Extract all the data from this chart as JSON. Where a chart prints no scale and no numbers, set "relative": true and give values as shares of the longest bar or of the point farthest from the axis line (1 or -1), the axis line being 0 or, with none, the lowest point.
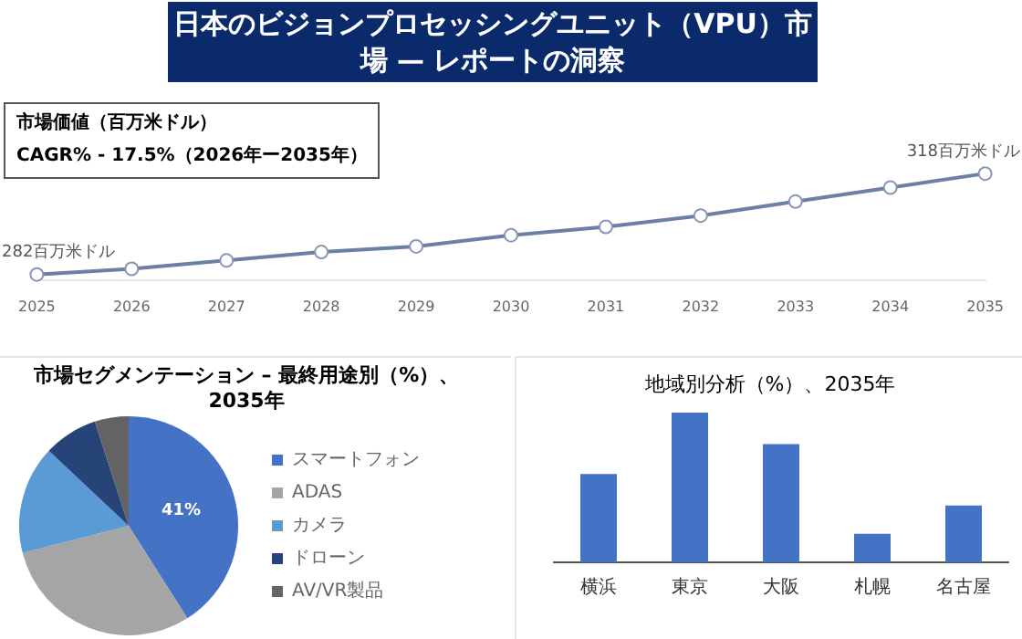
{
  "chart_data": [
    {
      "type": "line",
      "title": "日本のビジョンプロセッシングユニット（VPU）市場 — レポートの洞察",
      "subtitle": "市場価値（百万米ドル）",
      "annotations": [
        "CAGR% - 17.5%（2026年ー2035年）"
      ],
      "categories": [
        "2025",
        "2026",
        "2027",
        "2028",
        "2029",
        "2030",
        "2031",
        "2032",
        "2033",
        "2034",
        "2035"
      ],
      "series": [
        {
          "color": "#6b7fa8",
          "values": [
            282,
            284,
            287,
            290,
            292,
            296,
            299,
            303,
            308,
            313,
            318
          ],
          "value_labels": [
            "282百万米ドル",
            null,
            null,
            null,
            null,
            null,
            null,
            null,
            null,
            null,
            "318百万米ドル"
          ]
        }
      ],
      "tick_labels": "x",
      "marker": "circle",
      "grid": false,
      "legend": false
    },
    {
      "type": "pie",
      "title": "市場セグメンテーション – 最終用途別（%）、2035年",
      "categories": [
        "スマートフォン",
        "ADAS",
        "カメラ",
        "ドローン",
        "AV/VR製品"
      ],
      "values": [
        41,
        30,
        16,
        8,
        5
      ],
      "colors": [
        "#4472c4",
        "#a5a5a5",
        "#5b9bd5",
        "#264478",
        "#636363"
      ],
      "value_labels": [
        "41%",
        null,
        null,
        null,
        null
      ],
      "legend": "right"
    },
    {
      "type": "bar",
      "title": "地域別分析（%）、2035年",
      "categories": [
        "横浜",
        "東京",
        "大阪",
        "札幌",
        "名古屋"
      ],
      "values": [
        0.59,
        1,
        0.79,
        0.19,
        0.38
      ],
      "color": "#4472c4",
      "relative": true,
      "grid": false,
      "legend": false
    }
  ]
}
